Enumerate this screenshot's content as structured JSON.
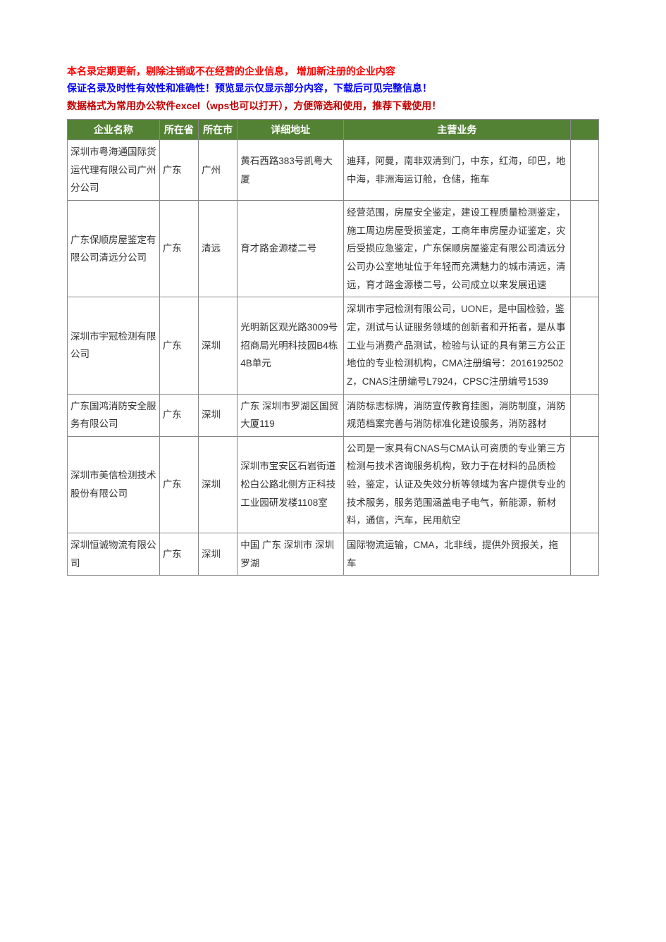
{
  "intro": {
    "line1": "本名录定期更新，剔除注销或不在经营的企业信息， 增加新注册的企业内容",
    "line2": "保证名录及时性有效性和准确性！预览显示仅显示部分内容，下载后可见完整信息！",
    "line3": "数据格式为常用办公软件excel（wps也可以打开），方便筛选和使用，推荐下载使用！"
  },
  "table": {
    "headers": {
      "name": "企业名称",
      "province": "所在省",
      "city": "所在市",
      "address": "详细地址",
      "business": "主营业务",
      "extra": ""
    },
    "header_bg": "#548235",
    "header_fg": "#ffffff",
    "border_color": "#888888",
    "rows": [
      {
        "name": "深圳市粤海通国际货运代理有限公司广州分公司",
        "province": "广东",
        "city": "广州",
        "address": "黄石西路383号凯粤大厦",
        "business": "迪拜，阿曼，南非双清到门，中东，红海，印巴，地中海，非洲海运订舱，仓储，拖车"
      },
      {
        "name": "广东保顺房屋鉴定有限公司清远分公司",
        "province": "广东",
        "city": "清远",
        "address": "育才路金源楼二号",
        "business": "经营范围，房屋安全鉴定，建设工程质量检测鉴定，施工周边房屋受损鉴定，工商年审房屋办证鉴定，灾后受损应急鉴定，广东保顺房屋鉴定有限公司清远分公司办公室地址位于年轻而充满魅力的城市清远，清远，育才路金源楼二号，公司成立以来发展迅速"
      },
      {
        "name": "深圳市宇冠检测有限公司",
        "province": "广东",
        "city": "深圳",
        "address": "光明新区观光路3009号招商局光明科技园B4栋4B单元",
        "business": "深圳市宇冠检测有限公司，UONE，是中国检验，鉴定，测试与认证服务领域的创新者和开拓者，是从事工业与消费产品测试，检验与认证的具有第三方公正地位的专业检测机构，CMA注册编号：2016192502Z，CNAS注册编号L7924，CPSC注册编号1539"
      },
      {
        "name": "广东国鸿消防安全服务有限公司",
        "province": "广东",
        "city": "深圳",
        "address": "广东  深圳市罗湖区国贸大厦119",
        "business": "消防标志标牌，消防宣传教育挂图，消防制度，消防规范档案完善与消防标准化建设服务，消防器材"
      },
      {
        "name": "深圳市美信检测技术股份有限公司",
        "province": "广东",
        "city": "深圳",
        "address": "深圳市宝安区石岩街道松白公路北侧方正科技工业园研发楼1108室",
        "business": "公司是一家具有CNAS与CMA认可资质的专业第三方检测与技术咨询服务机构，致力于在材料的品质检验，鉴定，认证及失效分析等领域为客户提供专业的技术服务，服务范围涵盖电子电气，新能源，新材料，通信，汽车，民用航空"
      },
      {
        "name": "深圳恒诚物流有限公司",
        "province": "广东",
        "city": "深圳",
        "address": "中国  广东  深圳市  深圳罗湖",
        "business": "国际物流运输，CMA，北非线，提供外贸报关，拖车"
      }
    ]
  }
}
